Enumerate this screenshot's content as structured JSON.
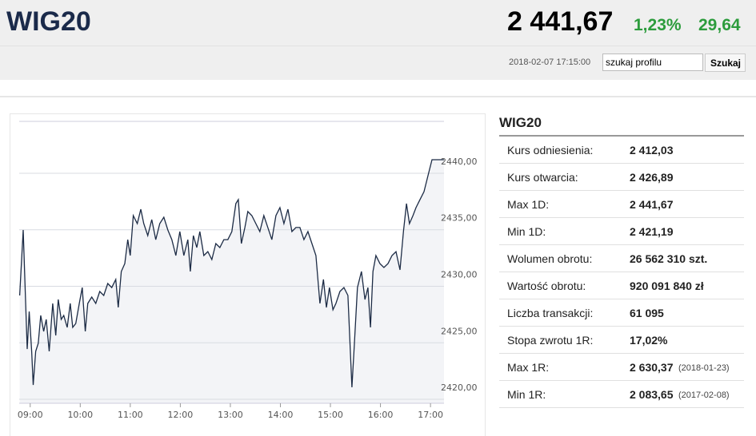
{
  "header": {
    "title": "WIG20",
    "price": "2 441,67",
    "change_pct": "1,23%",
    "change": "29,64",
    "datetime": "2018-02-07 17:15:00",
    "search_text": "szukaj profilu",
    "search_button": "Szukaj"
  },
  "chart_data": {
    "type": "line",
    "color": "#1c2b45",
    "area_color": "#f3f4f7",
    "grid": true,
    "x": [
      8.79,
      8.86,
      8.94,
      8.98,
      9.03,
      9.06,
      9.11,
      9.16,
      9.21,
      9.27,
      9.32,
      9.38,
      9.45,
      9.51,
      9.56,
      9.62,
      9.67,
      9.74,
      9.8,
      9.85,
      9.91,
      9.98,
      10.04,
      10.1,
      10.15,
      10.23,
      10.31,
      10.39,
      10.47,
      10.55,
      10.63,
      10.71,
      10.76,
      10.82,
      10.89,
      10.95,
      11.0,
      11.06,
      11.14,
      11.21,
      11.27,
      11.35,
      11.43,
      11.51,
      11.59,
      11.67,
      11.75,
      11.83,
      11.91,
      11.99,
      12.07,
      12.15,
      12.2,
      12.26,
      12.33,
      12.39,
      12.47,
      12.55,
      12.63,
      12.71,
      12.79,
      12.87,
      12.95,
      13.03,
      13.11,
      13.16,
      13.22,
      13.29,
      13.35,
      13.43,
      13.51,
      13.59,
      13.67,
      13.75,
      13.83,
      13.91,
      13.99,
      14.07,
      14.15,
      14.23,
      14.31,
      14.39,
      14.47,
      14.55,
      14.63,
      14.71,
      14.79,
      14.86,
      14.92,
      14.98,
      15.05,
      15.11,
      15.19,
      15.27,
      15.35,
      15.43,
      15.48,
      15.54,
      15.62,
      15.69,
      15.75,
      15.8,
      15.85,
      15.91,
      15.99,
      16.07,
      16.15,
      16.23,
      16.31,
      16.39,
      16.46,
      16.52,
      16.58,
      16.65,
      16.71,
      16.79,
      16.87,
      16.95,
      17.03,
      17.27
    ],
    "values": [
      2429.19,
      2434.98,
      2424.45,
      2427.77,
      2424.24,
      2421.27,
      2424.24,
      2424.95,
      2427.42,
      2426.01,
      2427.07,
      2424.24,
      2428.48,
      2425.65,
      2428.83,
      2427.07,
      2427.42,
      2426.36,
      2428.48,
      2426.36,
      2426.71,
      2428.48,
      2429.89,
      2426.01,
      2428.48,
      2429.05,
      2428.48,
      2429.54,
      2429.19,
      2430.25,
      2429.89,
      2430.6,
      2428.13,
      2431.31,
      2432.01,
      2434.13,
      2432.72,
      2436.25,
      2435.55,
      2436.82,
      2435.55,
      2434.49,
      2435.9,
      2434.13,
      2435.55,
      2436.11,
      2434.98,
      2434.13,
      2432.72,
      2434.84,
      2432.72,
      2434.13,
      2431.31,
      2434.49,
      2433.43,
      2434.84,
      2432.72,
      2433.07,
      2432.37,
      2433.78,
      2433.43,
      2434.13,
      2434.13,
      2434.84,
      2437.31,
      2437.67,
      2433.78,
      2435.2,
      2436.61,
      2436.25,
      2435.55,
      2434.84,
      2436.25,
      2435.2,
      2434.13,
      2436.25,
      2436.96,
      2435.55,
      2436.82,
      2434.84,
      2435.2,
      2435.2,
      2434.13,
      2434.84,
      2433.78,
      2432.72,
      2428.48,
      2430.6,
      2428.13,
      2429.89,
      2427.92,
      2428.48,
      2429.54,
      2429.89,
      2429.19,
      2421.06,
      2424.95,
      2429.89,
      2431.31,
      2428.83,
      2429.89,
      2426.36,
      2431.31,
      2432.72,
      2432.01,
      2431.66,
      2432.01,
      2432.72,
      2433.07,
      2431.45,
      2434.84,
      2437.31,
      2435.55,
      2436.25,
      2436.96,
      2437.67,
      2438.37,
      2439.79,
      2441.2,
      2441.2
    ],
    "xlim": [
      8.78,
      17.27
    ],
    "ylim": [
      2419.65,
      2444.59
    ],
    "xticks": [
      {
        "value": 9,
        "label": "09:00"
      },
      {
        "value": 10,
        "label": "10:00"
      },
      {
        "value": 11,
        "label": "11:00"
      },
      {
        "value": 12,
        "label": "12:00"
      },
      {
        "value": 13,
        "label": "13:00"
      },
      {
        "value": 14,
        "label": "14:00"
      },
      {
        "value": 15,
        "label": "15:00"
      },
      {
        "value": 16,
        "label": "16:00"
      },
      {
        "value": 17,
        "label": "17:00"
      }
    ],
    "yticks": [
      {
        "value": 2420,
        "label": "2420,00"
      },
      {
        "value": 2425,
        "label": "2425,00"
      },
      {
        "value": 2430,
        "label": "2430,00"
      },
      {
        "value": 2435,
        "label": "2435,00"
      },
      {
        "value": 2440,
        "label": "2440,00"
      }
    ]
  },
  "table": {
    "title": "WIG20",
    "rows": [
      {
        "label": "Kurs odniesienia:",
        "value": "2 412,03"
      },
      {
        "label": "Kurs otwarcia:",
        "value": "2 426,89"
      },
      {
        "label": "Max 1D:",
        "value": "2 441,67"
      },
      {
        "label": "Min 1D:",
        "value": "2 421,19"
      },
      {
        "label": "Wolumen obrotu:",
        "value": "26 562 310 szt."
      },
      {
        "label": "Wartość obrotu:",
        "value": "920 091 840 zł"
      },
      {
        "label": "Liczba transakcji:",
        "value": "61 095"
      },
      {
        "label": "Stopa zwrotu 1R:",
        "value": "17,02%"
      },
      {
        "label": "Max 1R:",
        "value": "2 630,37",
        "note": "(2018-01-23)"
      },
      {
        "label": "Min 1R:",
        "value": "2 083,65",
        "note": "(2017-02-08)"
      }
    ]
  }
}
